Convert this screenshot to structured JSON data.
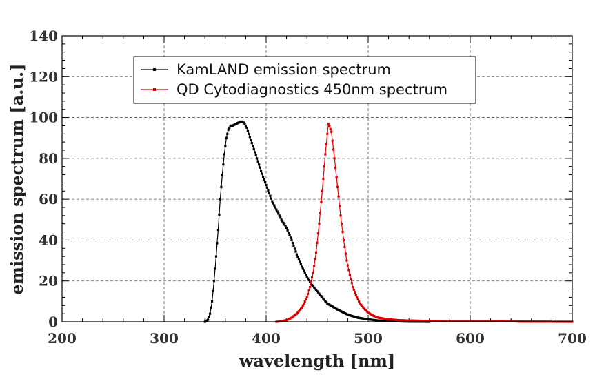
{
  "chart_data": {
    "type": "line",
    "title": "",
    "xlabel": "wavelength [nm]",
    "ylabel": "emission spectrum [a.u.]",
    "xlim": [
      200,
      700
    ],
    "ylim": [
      0,
      140
    ],
    "x_ticks": [
      "200",
      "300",
      "400",
      "500",
      "600",
      "700"
    ],
    "y_ticks": [
      "0",
      "20",
      "40",
      "60",
      "80",
      "100",
      "120",
      "140"
    ],
    "grid": true,
    "legend_position": "top-center",
    "series": [
      {
        "name": "KamLAND emission spectrum",
        "color": "#000000",
        "x": [
          340,
          343,
          345,
          347,
          349,
          351,
          353,
          355,
          357,
          359,
          361,
          363,
          365,
          367,
          369,
          371,
          373,
          375,
          377,
          379,
          381,
          383,
          385,
          387,
          389,
          391,
          393,
          395,
          397,
          400,
          403,
          406,
          410,
          415,
          420,
          425,
          430,
          435,
          440,
          445,
          450,
          455,
          460,
          470,
          480,
          490,
          500,
          510,
          520,
          540,
          560
        ],
        "y": [
          0,
          1,
          4,
          10,
          20,
          32,
          45,
          60,
          72,
          82,
          90,
          94,
          96,
          96,
          96.5,
          97,
          97.5,
          98,
          98,
          97,
          95,
          92,
          89,
          86,
          83,
          80,
          77,
          74,
          71,
          67,
          63,
          59,
          55,
          50,
          46,
          40,
          33,
          27,
          22,
          18,
          15,
          12,
          9,
          6,
          3.5,
          2,
          1.2,
          0.6,
          0.3,
          0.1,
          0
        ]
      },
      {
        "name": "QD Cytodiagnostics 450nm spectrum",
        "color": "#e00000",
        "x": [
          410,
          415,
          420,
          425,
          430,
          435,
          440,
          443,
          446,
          449,
          452,
          455,
          458,
          461,
          464,
          467,
          470,
          473,
          476,
          479,
          482,
          485,
          488,
          492,
          496,
          500,
          505,
          510,
          520,
          530,
          540,
          560,
          580,
          600,
          620,
          630,
          650,
          700
        ],
        "y": [
          0,
          0.3,
          0.8,
          2,
          4,
          7,
          12,
          17,
          24,
          34,
          48,
          64,
          82,
          97,
          93,
          80,
          66,
          52,
          40,
          30,
          23,
          17,
          13,
          9,
          6.5,
          4.5,
          3,
          2,
          1.2,
          0.8,
          0.6,
          0.4,
          0.3,
          0.3,
          0.3,
          0.4,
          0.1,
          0
        ]
      }
    ]
  }
}
